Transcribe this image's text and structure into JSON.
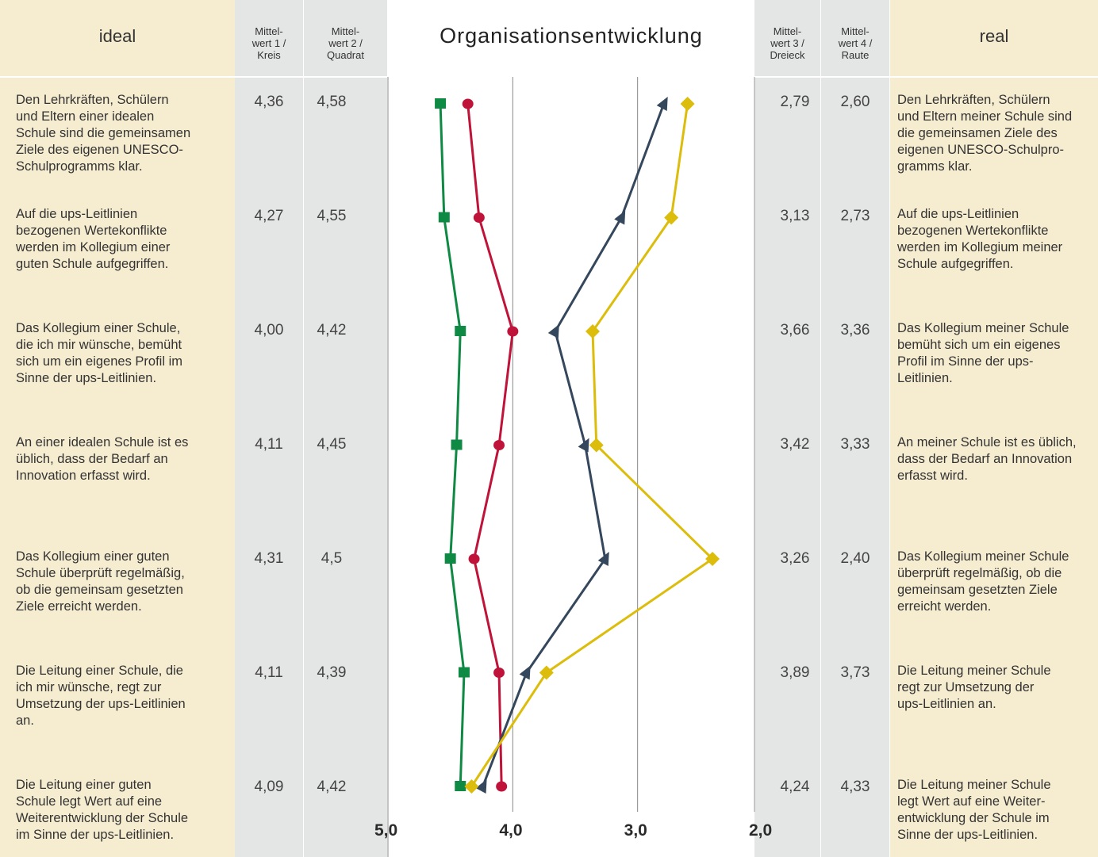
{
  "headers": {
    "ideal": "ideal",
    "m1": [
      "Mittel-",
      "wert 1 /",
      "Kreis"
    ],
    "m2": [
      "Mittel-",
      "wert 2 /",
      "Quadrat"
    ],
    "title": "Organisationsentwicklung",
    "m3": [
      "Mittel-",
      "wert 3 /",
      "Dreieck"
    ],
    "m4": [
      "Mittel-",
      "wert 4 /",
      "Raute"
    ],
    "real": "real"
  },
  "rows": [
    {
      "ideal": [
        "Den Lehrkräften, Schülern",
        "und Eltern einer idealen",
        "Schule sind die gemeinsamen",
        "Ziele des eigenen UNESCO-",
        "Schulprogramms klar."
      ],
      "m1": "4,36",
      "m2": "4,58",
      "m3": "2,79",
      "m4": "2,60",
      "real": [
        "Den Lehrkräften, Schülern",
        "und Eltern meiner Schule sind",
        "die gemeinsamen Ziele des",
        "eigenen UNESCO-Schulpro-",
        "gramms klar."
      ]
    },
    {
      "ideal": [
        "Auf die ups-Leitlinien",
        "bezogenen Wertekonflikte",
        "werden im Kollegium einer",
        "guten Schule aufgegriffen."
      ],
      "m1": "4,27",
      "m2": "4,55",
      "m3": "3,13",
      "m4": "2,73",
      "real": [
        "Auf die ups-Leitlinien",
        "bezogenen Wertekonflikte",
        "werden im Kollegium meiner",
        "Schule aufgegriffen."
      ]
    },
    {
      "ideal": [
        "Das Kollegium einer Schule,",
        "die ich mir wünsche, bemüht",
        "sich um ein eigenes Profil im",
        "Sinne der ups-Leitlinien."
      ],
      "m1": "4,00",
      "m2": "4,42",
      "m3": "3,66",
      "m4": "3,36",
      "real": [
        "Das Kollegium meiner Schule",
        "bemüht sich um ein eigenes",
        "Profil im Sinne der ups-",
        "Leitlinien."
      ]
    },
    {
      "ideal": [
        "An einer idealen Schule ist es",
        "üblich, dass der Bedarf an",
        "Innovation erfasst wird."
      ],
      "m1": "4,11",
      "m2": "4,45",
      "m3": "3,42",
      "m4": "3,33",
      "real": [
        "An meiner Schule ist es üblich,",
        "dass der Bedarf an Innovation",
        "erfasst wird."
      ]
    },
    {
      "ideal": [
        "Das Kollegium einer guten",
        "Schule überprüft regelmäßig,",
        "ob die gemeinsam gesetzten",
        "Ziele erreicht werden."
      ],
      "m1": "4,31",
      "m2": "4,5",
      "m3": "3,26",
      "m4": "2,40",
      "real": [
        "Das Kollegium meiner Schule",
        "überprüft regelmäßig, ob die",
        "gemeinsam gesetzten Ziele",
        "erreicht werden."
      ]
    },
    {
      "ideal": [
        "Die Leitung einer Schule, die",
        "ich mir wünsche, regt zur",
        "Umsetzung der ups-Leitlinien",
        "an."
      ],
      "m1": "4,11",
      "m2": "4,39",
      "m3": "3,89",
      "m4": "3,73",
      "real": [
        "Die Leitung meiner Schule",
        "regt zur Umsetzung der",
        "ups-Leitlinien an."
      ]
    },
    {
      "ideal": [
        "Die Leitung einer guten",
        "Schule legt Wert auf eine",
        "Weiterentwicklung der Schule",
        "im Sinne der ups-Leitlinien."
      ],
      "m1": "4,09",
      "m2": "4,42",
      "m3": "4,24",
      "m4": "4,33",
      "real": [
        "Die Leitung meiner Schule",
        "legt Wert auf eine Weiter-",
        "entwicklung der Schule im",
        "Sinne der ups-Leitlinien."
      ]
    }
  ],
  "chart_data": {
    "type": "line",
    "title": "Organisationsentwicklung",
    "orientation": "vertical-profile",
    "x_ticks": [
      "5,0",
      "4,0",
      "3,0",
      "2,0"
    ],
    "xlim": [
      5.0,
      2.0
    ],
    "x_reversed": true,
    "gridlines_at": [
      4.0,
      3.0
    ],
    "categories": [
      1,
      2,
      3,
      4,
      5,
      6,
      7
    ],
    "series": [
      {
        "name": "Mittelwert 1 / Kreis",
        "marker": "circle",
        "color": "#c0133a",
        "values": [
          4.36,
          4.27,
          4.0,
          4.11,
          4.31,
          4.11,
          4.09
        ]
      },
      {
        "name": "Mittelwert 2 / Quadrat",
        "marker": "square",
        "color": "#0f8a44",
        "values": [
          4.58,
          4.55,
          4.42,
          4.45,
          4.5,
          4.39,
          4.42
        ]
      },
      {
        "name": "Mittelwert 3 / Dreieck",
        "marker": "triangle",
        "color": "#34475c",
        "values": [
          2.79,
          3.13,
          3.66,
          3.42,
          3.26,
          3.89,
          4.24
        ]
      },
      {
        "name": "Mittelwert 4 / Raute",
        "marker": "diamond",
        "color": "#dcbd0c",
        "values": [
          2.6,
          2.73,
          3.36,
          3.33,
          2.4,
          3.73,
          4.33
        ]
      }
    ]
  }
}
